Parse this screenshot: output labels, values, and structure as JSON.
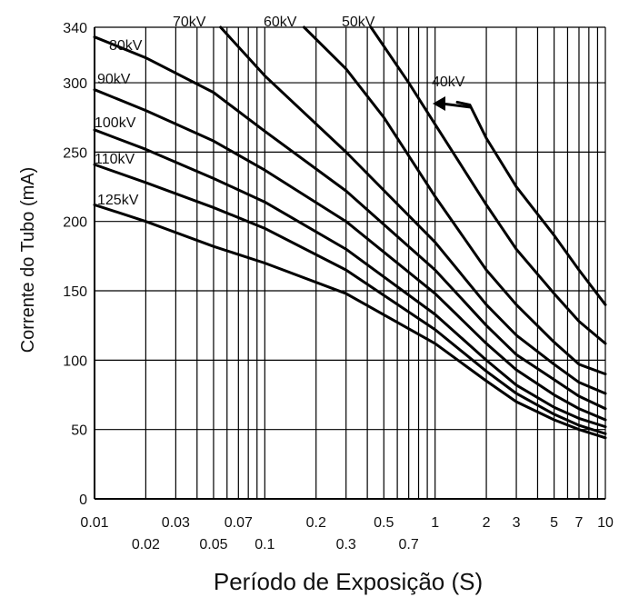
{
  "chart_data": {
    "type": "line",
    "title": "",
    "xlabel": "Período de Exposição (S)",
    "ylabel": "Corrente do Tubo (mA)",
    "x_scale": "log",
    "xlim": [
      0.01,
      10
    ],
    "ylim": [
      0,
      340
    ],
    "grid": true,
    "x_tick_labels_row1": [
      "0.01",
      "0.03",
      "0.07",
      "0.2",
      "0.5",
      "1",
      "2",
      "3",
      "5",
      "7",
      "10"
    ],
    "x_tick_labels_row2": [
      "0.02",
      "0.05",
      "0.1",
      "0.3",
      "0.7"
    ],
    "y_tick_labels": [
      "0",
      "50",
      "100",
      "150",
      "200",
      "250",
      "300",
      "340"
    ],
    "series": [
      {
        "name": "125kV",
        "x": [
          0.01,
          0.02,
          0.05,
          0.1,
          0.3,
          1,
          2,
          3,
          5,
          7,
          10
        ],
        "y": [
          212,
          200,
          182,
          170,
          148,
          112,
          85,
          70,
          57,
          50,
          44
        ]
      },
      {
        "name": "110kV",
        "x": [
          0.01,
          0.02,
          0.05,
          0.1,
          0.3,
          1,
          2,
          3,
          5,
          7,
          10
        ],
        "y": [
          241,
          228,
          210,
          195,
          165,
          122,
          92,
          76,
          61,
          53,
          47
        ]
      },
      {
        "name": "100kV",
        "x": [
          0.01,
          0.02,
          0.05,
          0.1,
          0.3,
          1,
          2,
          3,
          5,
          7,
          10
        ],
        "y": [
          266,
          252,
          231,
          214,
          180,
          133,
          100,
          82,
          66,
          58,
          52
        ]
      },
      {
        "name": "90kV",
        "x": [
          0.01,
          0.02,
          0.05,
          0.1,
          0.3,
          1,
          2,
          3,
          5,
          7,
          10
        ],
        "y": [
          295,
          280,
          258,
          237,
          200,
          148,
          112,
          93,
          75,
          65,
          57
        ]
      },
      {
        "name": "80kV",
        "x": [
          0.01,
          0.02,
          0.05,
          0.1,
          0.3,
          1,
          2,
          3,
          5,
          7,
          10
        ],
        "y": [
          333,
          318,
          293,
          265,
          222,
          165,
          125,
          104,
          86,
          74,
          65
        ]
      },
      {
        "name": "70kV",
        "x": [
          0.055,
          0.1,
          0.3,
          1,
          2,
          3,
          5,
          7,
          10
        ],
        "y": [
          340,
          305,
          250,
          185,
          140,
          118,
          97,
          84,
          76
        ]
      },
      {
        "name": "60kV",
        "x": [
          0.17,
          0.3,
          0.5,
          1,
          2,
          3,
          5,
          7,
          10
        ],
        "y": [
          340,
          310,
          275,
          218,
          165,
          140,
          113,
          97,
          90
        ]
      },
      {
        "name": "50kV",
        "x": [
          0.42,
          0.7,
          1,
          2,
          3,
          5,
          7,
          10
        ],
        "y": [
          340,
          300,
          270,
          212,
          180,
          148,
          128,
          112
        ]
      },
      {
        "name": "40kV",
        "x": [
          1.35,
          1.6,
          2,
          3,
          5,
          7,
          10
        ],
        "y": [
          286,
          284,
          260,
          225,
          190,
          165,
          140
        ]
      }
    ]
  }
}
